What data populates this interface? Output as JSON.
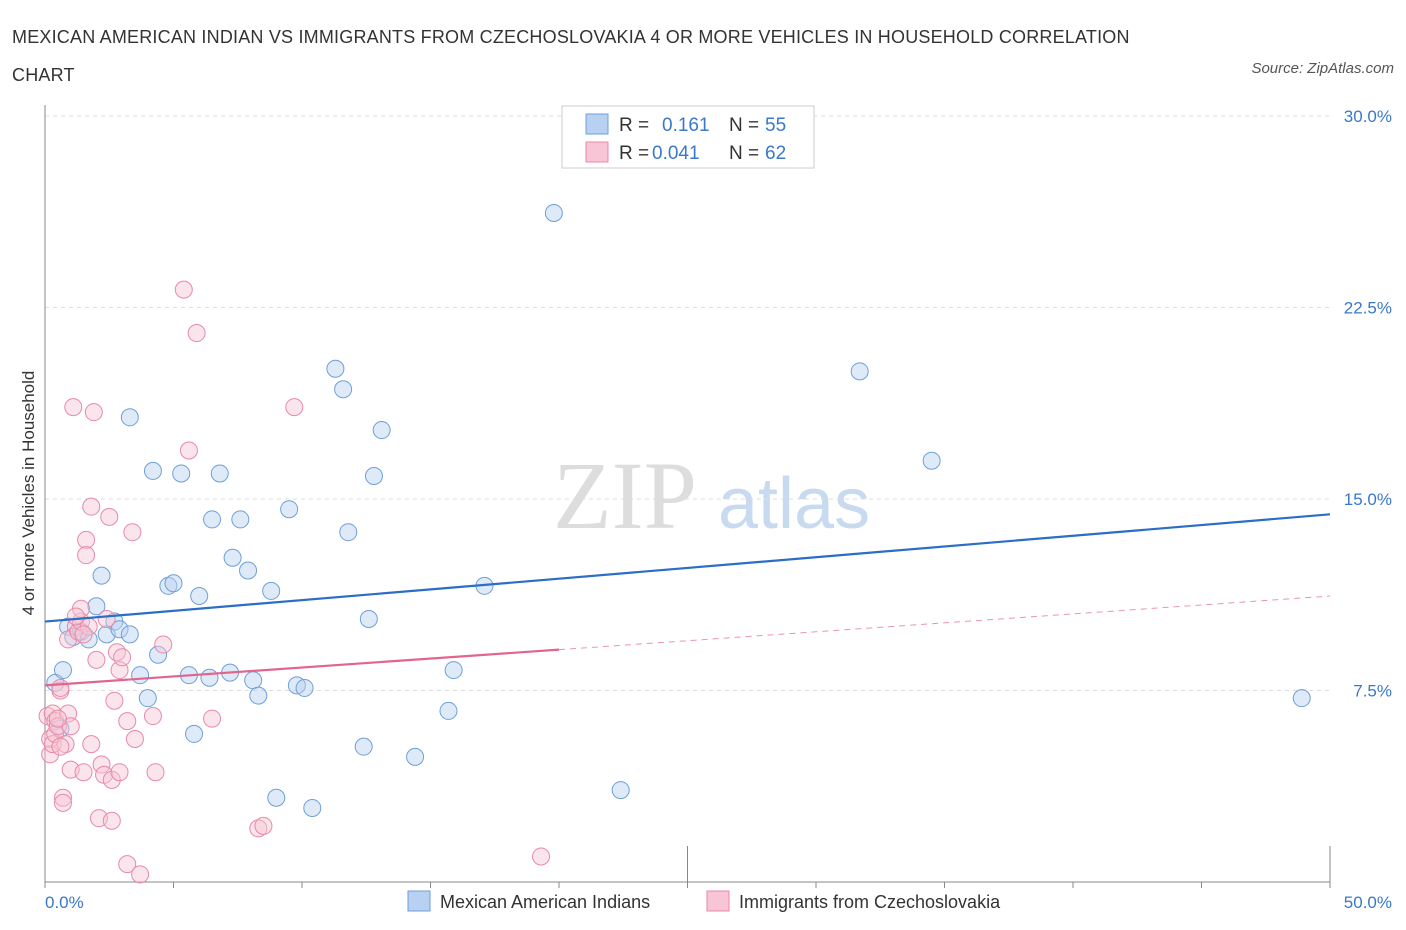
{
  "title": "MEXICAN AMERICAN INDIAN VS IMMIGRANTS FROM CZECHOSLOVAKIA 4 OR MORE VEHICLES IN HOUSEHOLD CORRELATION CHART",
  "source": "Source: ZipAtlas.com",
  "watermark": {
    "zip": "ZIP",
    "atlas": "atlas"
  },
  "legend": {
    "rows": [
      {
        "r_label": "R =",
        "r_value": "0.161",
        "n_label": "N =",
        "n_value": "55"
      },
      {
        "r_label": "R =",
        "r_value": "0.041",
        "n_label": "N =",
        "n_value": "62"
      }
    ]
  },
  "bottom_legend": [
    "Mexican American Indians",
    "Immigrants from Czechoslovakia"
  ],
  "chart_data": {
    "type": "scatter",
    "title": "MEXICAN AMERICAN INDIAN VS IMMIGRANTS FROM CZECHOSLOVAKIA 4 OR MORE VEHICLES IN HOUSEHOLD CORRELATION CHART",
    "xlabel": "",
    "ylabel": "4 or more Vehicles in Household",
    "xlim": [
      0,
      50
    ],
    "ylim": [
      0,
      30
    ],
    "x_tick_labels": [
      "0.0%",
      "50.0%"
    ],
    "y_tick_labels": [
      "7.5%",
      "15.0%",
      "22.5%",
      "30.0%"
    ],
    "y_ticks": [
      7.5,
      15.0,
      22.5,
      30.0
    ],
    "grid": true,
    "legend_placement": "top-center",
    "colors": {
      "blue": "#6e9fd8",
      "pink": "#e889a8",
      "blue_line": "#2a6ec6",
      "pink_line": "#e06690"
    },
    "series": [
      {
        "name": "Mexican American Indians",
        "color": "#6e9fd8",
        "trend": {
          "x": [
            0,
            50
          ],
          "y": [
            10.2,
            14.4
          ],
          "style": "solid"
        },
        "points": [
          [
            0.4,
            7.8
          ],
          [
            0.7,
            8.3
          ],
          [
            0.6,
            6.0
          ],
          [
            0.9,
            10.0
          ],
          [
            1.1,
            9.6
          ],
          [
            1.4,
            9.8
          ],
          [
            1.7,
            9.5
          ],
          [
            2.0,
            10.8
          ],
          [
            2.2,
            12.0
          ],
          [
            2.4,
            9.7
          ],
          [
            2.7,
            10.2
          ],
          [
            2.9,
            9.9
          ],
          [
            3.3,
            9.7
          ],
          [
            3.3,
            18.2
          ],
          [
            4.2,
            16.1
          ],
          [
            3.7,
            8.1
          ],
          [
            4.0,
            7.2
          ],
          [
            4.4,
            8.9
          ],
          [
            4.8,
            11.6
          ],
          [
            5.0,
            11.7
          ],
          [
            5.3,
            16.0
          ],
          [
            5.6,
            8.1
          ],
          [
            5.8,
            5.8
          ],
          [
            6.0,
            11.2
          ],
          [
            6.4,
            8.0
          ],
          [
            6.5,
            14.2
          ],
          [
            6.8,
            16.0
          ],
          [
            7.2,
            8.2
          ],
          [
            7.3,
            12.7
          ],
          [
            7.6,
            14.2
          ],
          [
            7.9,
            12.2
          ],
          [
            8.1,
            7.9
          ],
          [
            8.3,
            7.3
          ],
          [
            8.8,
            11.4
          ],
          [
            9.0,
            3.3
          ],
          [
            9.5,
            14.6
          ],
          [
            9.8,
            7.7
          ],
          [
            10.1,
            7.6
          ],
          [
            10.4,
            2.9
          ],
          [
            11.3,
            20.1
          ],
          [
            11.6,
            19.3
          ],
          [
            11.8,
            13.7
          ],
          [
            12.4,
            5.3
          ],
          [
            12.6,
            10.3
          ],
          [
            12.8,
            15.9
          ],
          [
            13.1,
            17.7
          ],
          [
            14.4,
            4.9
          ],
          [
            15.7,
            6.7
          ],
          [
            15.9,
            8.3
          ],
          [
            17.1,
            11.6
          ],
          [
            19.8,
            26.2
          ],
          [
            22.4,
            3.6
          ],
          [
            31.7,
            20.0
          ],
          [
            34.5,
            16.5
          ],
          [
            48.9,
            7.2
          ]
        ]
      },
      {
        "name": "Immigrants from Czechoslovakia",
        "color": "#e889a8",
        "trend": {
          "x": [
            0,
            20
          ],
          "y": [
            7.7,
            9.1
          ],
          "x_dashed": [
            20,
            50
          ],
          "y_dashed": [
            9.1,
            11.2
          ],
          "style": "solid-then-dashed"
        },
        "points": [
          [
            0.1,
            6.5
          ],
          [
            0.2,
            5.6
          ],
          [
            0.2,
            5.0
          ],
          [
            0.3,
            6.6
          ],
          [
            0.3,
            5.4
          ],
          [
            0.4,
            6.3
          ],
          [
            0.4,
            5.8
          ],
          [
            0.5,
            6.1
          ],
          [
            0.6,
            7.5
          ],
          [
            0.6,
            7.6
          ],
          [
            0.7,
            3.3
          ],
          [
            0.7,
            3.1
          ],
          [
            0.8,
            5.4
          ],
          [
            0.9,
            9.5
          ],
          [
            0.9,
            6.6
          ],
          [
            1.0,
            6.1
          ],
          [
            1.0,
            4.4
          ],
          [
            1.1,
            18.6
          ],
          [
            1.2,
            10.0
          ],
          [
            1.3,
            9.8
          ],
          [
            1.4,
            10.2
          ],
          [
            1.4,
            10.7
          ],
          [
            1.5,
            4.3
          ],
          [
            1.6,
            13.4
          ],
          [
            1.6,
            12.8
          ],
          [
            1.7,
            10.0
          ],
          [
            1.8,
            5.4
          ],
          [
            1.8,
            14.7
          ],
          [
            1.9,
            18.4
          ],
          [
            2.0,
            8.7
          ],
          [
            2.1,
            2.5
          ],
          [
            2.2,
            4.6
          ],
          [
            2.3,
            4.2
          ],
          [
            2.4,
            10.3
          ],
          [
            2.5,
            14.3
          ],
          [
            2.6,
            4.0
          ],
          [
            2.6,
            2.4
          ],
          [
            2.7,
            7.1
          ],
          [
            2.8,
            9.0
          ],
          [
            2.9,
            8.3
          ],
          [
            3.0,
            8.8
          ],
          [
            3.2,
            6.3
          ],
          [
            3.2,
            0.7
          ],
          [
            3.4,
            13.7
          ],
          [
            3.5,
            5.6
          ],
          [
            3.7,
            0.3
          ],
          [
            4.2,
            6.5
          ],
          [
            4.3,
            4.3
          ],
          [
            4.6,
            9.3
          ],
          [
            5.4,
            23.2
          ],
          [
            5.9,
            21.5
          ],
          [
            5.6,
            16.9
          ],
          [
            6.5,
            6.4
          ],
          [
            8.3,
            2.1
          ],
          [
            8.5,
            2.2
          ],
          [
            9.7,
            18.6
          ],
          [
            19.3,
            1.0
          ],
          [
            0.5,
            6.4
          ],
          [
            1.2,
            10.4
          ],
          [
            0.6,
            5.3
          ],
          [
            2.9,
            4.3
          ],
          [
            1.5,
            9.7
          ]
        ]
      }
    ]
  }
}
